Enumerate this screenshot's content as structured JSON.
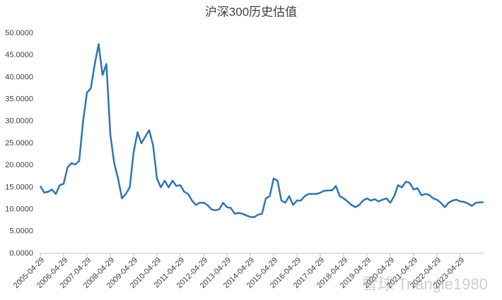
{
  "chart_data": {
    "type": "line",
    "title": "沪深300历史估值",
    "watermark": "雪球 Triangle1980",
    "color": "#2e75b6",
    "categories": [
      "2005-04-29",
      null,
      null,
      null,
      null,
      null,
      "2006-04-29",
      null,
      null,
      null,
      null,
      null,
      "2007-04-29",
      null,
      null,
      null,
      null,
      null,
      "2008-04-29",
      null,
      null,
      null,
      null,
      null,
      "2009-04-29",
      null,
      null,
      null,
      null,
      null,
      "2010-04-29",
      null,
      null,
      null,
      null,
      null,
      "2011-04-29",
      null,
      null,
      null,
      null,
      null,
      "2012-04-29",
      null,
      null,
      null,
      null,
      null,
      "2013-04-29",
      null,
      null,
      null,
      null,
      null,
      "2014-04-29",
      null,
      null,
      null,
      null,
      null,
      "2015-04-29",
      null,
      null,
      null,
      null,
      null,
      "2016-04-29",
      null,
      null,
      null,
      null,
      null,
      "2017-04-29",
      null,
      null,
      null,
      null,
      null,
      "2018-04-29",
      null,
      null,
      null,
      null,
      null,
      "2019-04-29",
      null,
      null,
      null,
      null,
      null,
      "2020-04-29",
      null,
      null,
      null,
      null,
      null,
      "2021-04-29",
      null,
      null,
      null,
      null,
      null,
      "2022-04-29",
      null,
      null,
      null,
      null,
      null,
      "2023-04-29",
      null,
      null,
      null,
      null,
      null,
      null
    ],
    "values": [
      15.3,
      13.8,
      14,
      14.5,
      13.5,
      15.5,
      15.8,
      19.5,
      20.5,
      20.2,
      21,
      30,
      36.5,
      37.5,
      43,
      47.5,
      40.5,
      43,
      27,
      20.5,
      17,
      12.5,
      13.5,
      15,
      23,
      27.5,
      25,
      26.5,
      28,
      24.5,
      17,
      15,
      16.5,
      15,
      16.5,
      15.3,
      15.5,
      14,
      13.5,
      12,
      11,
      11.5,
      11.5,
      11,
      10,
      9.8,
      10,
      11.5,
      10.5,
      10.3,
      9,
      9.2,
      9,
      8.6,
      8.3,
      8.2,
      8.8,
      9,
      12.5,
      13,
      17,
      16.5,
      12,
      11.5,
      13,
      11,
      12,
      12,
      13,
      13.5,
      13.5,
      13.5,
      13.8,
      14.2,
      14.3,
      14.3,
      15.3,
      13,
      12.5,
      11.8,
      11,
      10.5,
      11,
      12,
      12.5,
      12,
      12.3,
      11.8,
      12.2,
      12.5,
      11.5,
      13,
      15.5,
      15,
      16.3,
      16,
      14.5,
      14.8,
      13.2,
      13.5,
      13.3,
      12.5,
      12.2,
      11.5,
      10.5,
      11.5,
      12,
      12.2,
      11.8,
      11.7,
      11.3,
      10.8,
      11.5,
      11.6,
      11.6
    ],
    "ylim": [
      0,
      50
    ],
    "yticks": [
      {
        "value": 0,
        "label": "0.0000"
      },
      {
        "value": 5,
        "label": "5.0000"
      },
      {
        "value": 10,
        "label": "10.0000"
      },
      {
        "value": 15,
        "label": "15.0000"
      },
      {
        "value": 20,
        "label": "20.0000"
      },
      {
        "value": 25,
        "label": "25.0000"
      },
      {
        "value": 30,
        "label": "30.0000"
      },
      {
        "value": 35,
        "label": "35.0000"
      },
      {
        "value": 40,
        "label": "40.0000"
      },
      {
        "value": 45,
        "label": "45.0000"
      },
      {
        "value": 50,
        "label": "50.0000"
      }
    ],
    "grid": false
  }
}
